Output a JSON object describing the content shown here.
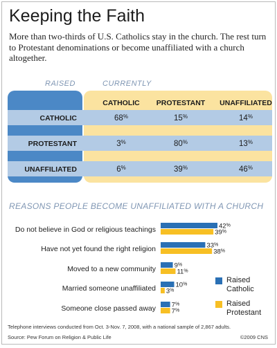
{
  "title": "Keeping the Faith",
  "subtitle": "More than two-thirds of U.S. Catholics stay in the church. The rest turn to Protestant denominations or become unaffiliated with a church altogether.",
  "colors": {
    "blue": "#2a70b5",
    "yellow": "#f7bf24",
    "raised_panel": "#4b88c6",
    "current_panel": "#fbe3a0",
    "row_band": "#b3cbe5",
    "label_color": "#7f96b3"
  },
  "chart_data": [
    {
      "type": "table",
      "row_header": "RAISED",
      "column_header": "CURRENTLY",
      "columns": [
        "CATHOLIC",
        "PROTESTANT",
        "UNAFFILIATED"
      ],
      "rows": [
        {
          "label": "CATHOLIC",
          "values": [
            "68%",
            "15%",
            "14%"
          ]
        },
        {
          "label": "PROTESTANT",
          "values": [
            "3%",
            "80%",
            "13%"
          ]
        },
        {
          "label": "UNAFFILIATED",
          "values": [
            "6%",
            "39%",
            "46%"
          ]
        }
      ]
    },
    {
      "type": "bar",
      "orientation": "horizontal",
      "title": "REASONS PEOPLE BECOME UNAFFILIATED WITH A CHURCH",
      "categories": [
        "Do not believe in God or religious teachings",
        "Have not yet found the right religion",
        "Moved to a new community",
        "Married someone unaffiliated",
        "Someone close passed away"
      ],
      "series": [
        {
          "name": "Raised Catholic",
          "color": "#2a70b5",
          "values": [
            42,
            33,
            9,
            10,
            7
          ]
        },
        {
          "name": "Raised Protestant",
          "color": "#f7bf24",
          "values": [
            39,
            38,
            11,
            3,
            7
          ]
        }
      ],
      "value_suffix": "%",
      "xlim": [
        0,
        45
      ],
      "legend": "right"
    }
  ],
  "footnote": "Telephone interviews conducted from Oct. 3-Nov. 7, 2008, with a national sample of 2,867 adults.",
  "source": "Source: Pew Forum on Religion & Public Life",
  "copyright": "©2009 CNS"
}
